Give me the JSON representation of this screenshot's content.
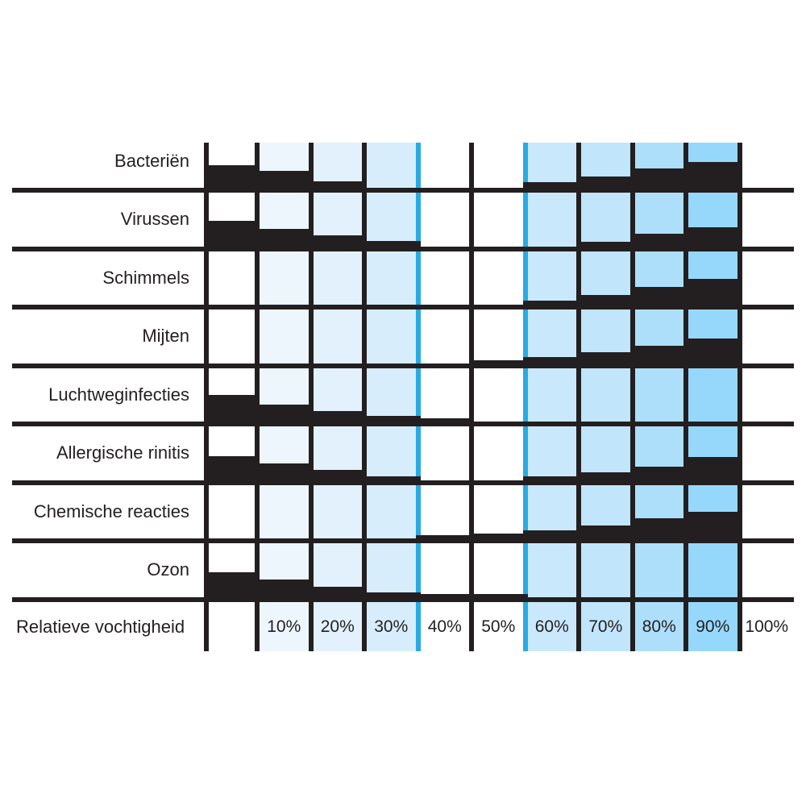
{
  "chart_data": {
    "type": "bar",
    "title": "",
    "description": "Optimum relative humidity chart (Sterling-style): black stepped wedges show relative hazard magnitude per 10% humidity bin; blue guide lines mark the optimal 40%-60% zone.",
    "xlabel": "Relatieve vochtigheid",
    "x_tick_labels": [
      "10%",
      "20%",
      "30%",
      "40%",
      "50%",
      "60%",
      "70%",
      "80%",
      "90%",
      "100%"
    ],
    "humidity_bins": [
      "0-10%",
      "10-20%",
      "20-30%",
      "30-40%",
      "40-50%",
      "50-60%",
      "60-70%",
      "70-80%",
      "80-90%",
      "90-100%"
    ],
    "optimal_zone": {
      "from": "40%",
      "to": "60%"
    },
    "rows": [
      {
        "label": "Bacteriën",
        "levels": [
          28,
          21,
          8,
          0,
          0,
          0,
          7,
          14,
          24,
          32
        ]
      },
      {
        "label": "Virussen",
        "levels": [
          32,
          22,
          14,
          7,
          0,
          0,
          0,
          6,
          16,
          24
        ]
      },
      {
        "label": "Schimmels",
        "levels": [
          0,
          0,
          0,
          0,
          0,
          0,
          5,
          12,
          22,
          32
        ]
      },
      {
        "label": "Mijten",
        "levels": [
          0,
          0,
          0,
          0,
          0,
          4,
          8,
          14,
          22,
          31
        ]
      },
      {
        "label": "Luchtweginfecties",
        "levels": [
          33,
          21,
          13,
          7,
          4,
          0,
          0,
          0,
          0,
          0
        ]
      },
      {
        "label": "Allergische rinitis",
        "levels": [
          30,
          21,
          13,
          5,
          0,
          0,
          5,
          10,
          17,
          29
        ]
      },
      {
        "label": "Chemische reacties",
        "levels": [
          0,
          0,
          0,
          0,
          4,
          6,
          10,
          16,
          25,
          33
        ]
      },
      {
        "label": "Ozon",
        "levels": [
          31,
          22,
          13,
          6,
          4,
          4,
          0,
          0,
          0,
          0
        ]
      }
    ],
    "column_fill_colors": [
      "#ffffff",
      "#edf6fd",
      "#e2f1fc",
      "#d7edfb",
      "#ffffff",
      "#ffffff",
      "#c9e8fb",
      "#c1e5fa",
      "#addffa",
      "#96d8fb",
      "#ffffff"
    ],
    "level_scale_note": "levels are wedge heights in px (0 = no hazard, ~33 = max shown)",
    "colors": {
      "wedge_and_grid": "#231f20",
      "optimal_zone_line": "#29abe2",
      "text": "#231f20"
    },
    "legend": "none",
    "grid": "on"
  }
}
